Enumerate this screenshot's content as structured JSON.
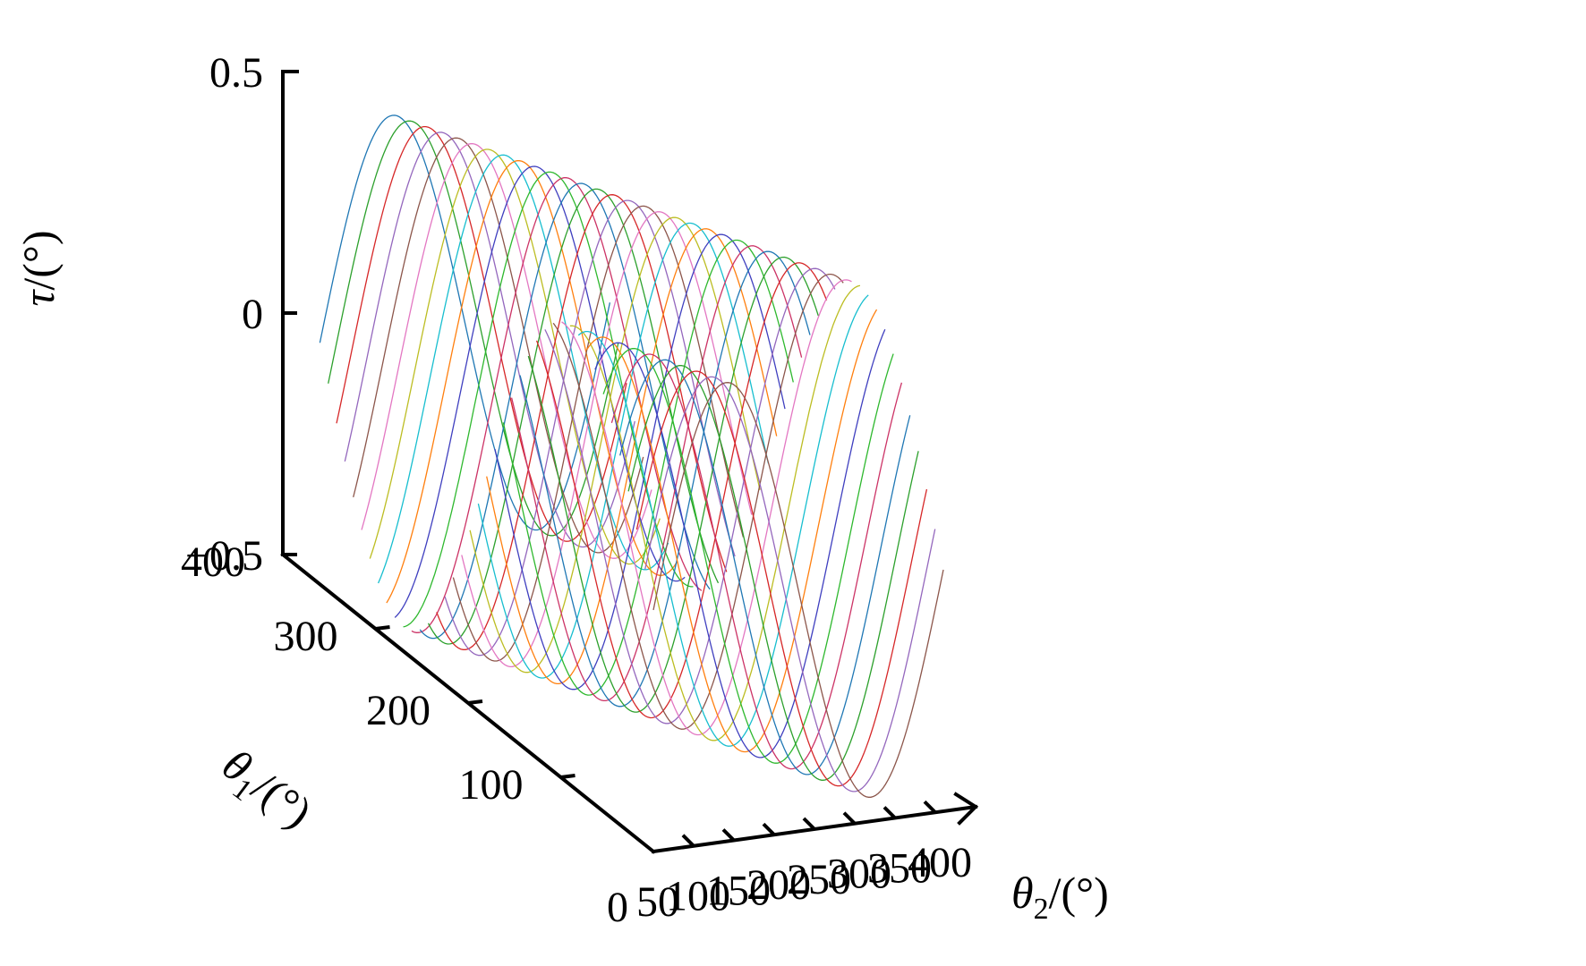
{
  "chart_data": {
    "type": "line",
    "title": "",
    "zlabel": {
      "symbol": "τ",
      "unit": "/(°)"
    },
    "xlabel": {
      "symbol": "θ",
      "sub": "2",
      "unit": "/(°)"
    },
    "ylabel": {
      "symbol": "θ",
      "sub": "1",
      "unit": "/(°)"
    },
    "xlim": [
      0,
      400
    ],
    "ylim": [
      0,
      400
    ],
    "zlim": [
      -0.5,
      0.5
    ],
    "x_ticks": [
      "0",
      "50",
      "100",
      "150",
      "200",
      "250",
      "300",
      "350",
      "400"
    ],
    "y_ticks": [
      "100",
      "200",
      "300",
      "400"
    ],
    "z_ticks": [
      "0.5",
      "0",
      "−0.5"
    ],
    "x_tick_values": [
      0,
      50,
      100,
      150,
      200,
      250,
      300,
      350,
      400
    ],
    "y_tick_values": [
      100,
      200,
      300,
      400
    ],
    "z_tick_values": [
      0.5,
      0,
      -0.5
    ],
    "surface": {
      "theta2_range": [
        0,
        360
      ],
      "theta1_range": [
        0,
        360
      ],
      "theta1_step": 9,
      "amplitude": 0.45,
      "function": "tau = 0.45 * sin(theta1 + theta2)"
    },
    "series_colors": [
      "#1f77b4",
      "#2ca02c",
      "#d62728",
      "#9467bd",
      "#8c564b",
      "#e377c2",
      "#bcbd22",
      "#17becf",
      "#ff7f0e",
      "#3f3fbf",
      "#2eb82e",
      "#cc3366"
    ]
  }
}
